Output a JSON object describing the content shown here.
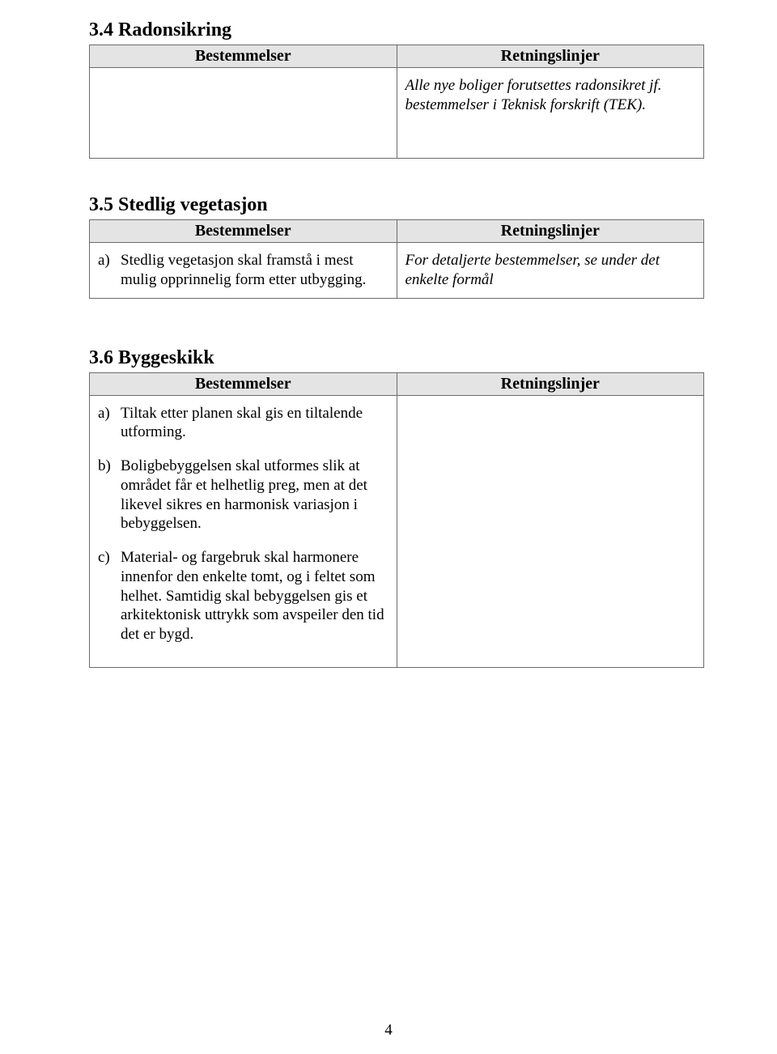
{
  "colors": {
    "text": "#000000",
    "background": "#ffffff",
    "tableBorder": "#6b6b6b",
    "tableHeaderBg": "#e4e4e4"
  },
  "typography": {
    "bodyFontFamily": "Times New Roman",
    "headingFontSizePt": 18,
    "tableHeaderFontSizePt": 15,
    "bodyFontSizePt": 14
  },
  "page": {
    "number": "4"
  },
  "section1": {
    "heading": "3.4 Radonsikring",
    "table": {
      "headers": {
        "left": "Bestemmelser",
        "right": "Retningslinjer"
      },
      "leftCell": "",
      "rightCell": "Alle nye boliger forutsettes radonsikret jf. bestemmelser i Teknisk forskrift (TEK)."
    }
  },
  "section2": {
    "heading": "3.5 Stedlig vegetasjon",
    "table": {
      "headers": {
        "left": "Bestemmelser",
        "right": "Retningslinjer"
      },
      "leftItems": [
        {
          "marker": "a)",
          "text": "Stedlig vegetasjon skal framstå i mest mulig opprinnelig form etter utbygging."
        }
      ],
      "rightCell": "For detaljerte bestemmelser, se under det enkelte formål"
    }
  },
  "section3": {
    "heading": "3.6 Byggeskikk",
    "table": {
      "headers": {
        "left": "Bestemmelser",
        "right": "Retningslinjer"
      },
      "leftItems": [
        {
          "marker": "a)",
          "text": "Tiltak etter planen skal gis en tiltalende utforming."
        },
        {
          "marker": "b)",
          "text": "Boligbebyggelsen skal utformes slik at området får et helhetlig preg, men at det likevel sikres en harmonisk variasjon i bebyggelsen."
        },
        {
          "marker": "c)",
          "text": "Material- og fargebruk skal harmonere innenfor den enkelte tomt, og i feltet som helhet. Samtidig skal bebyggelsen gis et arkitektonisk uttrykk som avspeiler den tid det er bygd."
        }
      ],
      "rightCell": ""
    }
  }
}
